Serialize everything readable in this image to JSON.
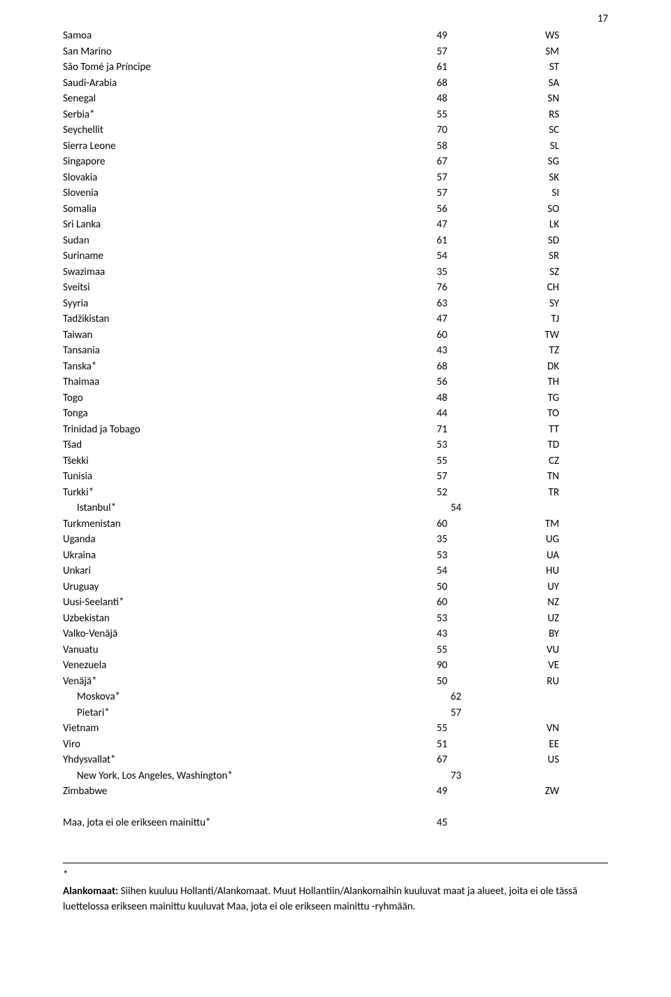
{
  "page_number": "17",
  "rows": [
    {
      "name": "Samoa",
      "num": "49",
      "code": "WS"
    },
    {
      "name": "San Marino",
      "num": "57",
      "code": "SM"
    },
    {
      "name": "São Tomé ja Príncipe",
      "num": "61",
      "code": "ST"
    },
    {
      "name": "Saudi-Arabia",
      "num": "68",
      "code": "SA"
    },
    {
      "name": "Senegal",
      "num": "48",
      "code": "SN"
    },
    {
      "name": "Serbia*",
      "num": "55",
      "code": "RS"
    },
    {
      "name": "Seychellit",
      "num": "70",
      "code": "SC"
    },
    {
      "name": "Sierra Leone",
      "num": "58",
      "code": "SL"
    },
    {
      "name": "Singapore",
      "num": "67",
      "code": "SG"
    },
    {
      "name": "Slovakia",
      "num": "57",
      "code": "SK"
    },
    {
      "name": "Slovenia",
      "num": "57",
      "code": "SI"
    },
    {
      "name": "Somalia",
      "num": "56",
      "code": "SO"
    },
    {
      "name": "Sri Lanka",
      "num": "47",
      "code": "LK"
    },
    {
      "name": "Sudan",
      "num": "61",
      "code": "SD"
    },
    {
      "name": "Suriname",
      "num": "54",
      "code": "SR"
    },
    {
      "name": "Swazimaa",
      "num": "35",
      "code": "SZ"
    },
    {
      "name": "Sveitsi",
      "num": "76",
      "code": "CH"
    },
    {
      "name": "Syyria",
      "num": "63",
      "code": "SY"
    },
    {
      "name": "Tadžikistan",
      "num": "47",
      "code": "TJ"
    },
    {
      "name": "Taiwan",
      "num": "60",
      "code": "TW"
    },
    {
      "name": "Tansania",
      "num": "43",
      "code": "TZ"
    },
    {
      "name": "Tanska*",
      "num": "68",
      "code": "DK"
    },
    {
      "name": "Thaimaa",
      "num": "56",
      "code": "TH"
    },
    {
      "name": "Togo",
      "num": "48",
      "code": "TG"
    },
    {
      "name": "Tonga",
      "num": "44",
      "code": "TO"
    },
    {
      "name": "Trinidad ja Tobago",
      "num": "71",
      "code": "TT"
    },
    {
      "name": "Tšad",
      "num": "53",
      "code": "TD"
    },
    {
      "name": "Tšekki",
      "num": "55",
      "code": "CZ"
    },
    {
      "name": "Tunisia",
      "num": "57",
      "code": "TN"
    },
    {
      "name": "Turkki*",
      "num": "52",
      "code": "TR"
    },
    {
      "name": "Istanbul*",
      "num": "54",
      "code": "",
      "indent": true
    },
    {
      "name": "Turkmenistan",
      "num": "60",
      "code": "TM"
    },
    {
      "name": "Uganda",
      "num": "35",
      "code": "UG"
    },
    {
      "name": "Ukraina",
      "num": "53",
      "code": "UA"
    },
    {
      "name": "Unkari",
      "num": "54",
      "code": "HU"
    },
    {
      "name": "Uruguay",
      "num": "50",
      "code": "UY"
    },
    {
      "name": "Uusi-Seelanti*",
      "num": "60",
      "code": "NZ"
    },
    {
      "name": "Uzbekistan",
      "num": "53",
      "code": "UZ"
    },
    {
      "name": "Valko-Venäjä",
      "num": "43",
      "code": "BY"
    },
    {
      "name": "Vanuatu",
      "num": "55",
      "code": "VU"
    },
    {
      "name": "Venezuela",
      "num": "90",
      "code": "VE"
    },
    {
      "name": "Venäjä*",
      "num": "50",
      "code": "RU"
    },
    {
      "name": "Moskova*",
      "num": "62",
      "code": "",
      "indent": true
    },
    {
      "name": "Pietari*",
      "num": "57",
      "code": "",
      "indent": true
    },
    {
      "name": "Vietnam",
      "num": "55",
      "code": "VN"
    },
    {
      "name": "Viro",
      "num": "51",
      "code": "EE"
    },
    {
      "name": "Yhdysvallat*",
      "num": "67",
      "code": "US"
    },
    {
      "name": "New York, Los Angeles, Washington*",
      "num": "73",
      "code": "",
      "indent": true
    },
    {
      "name": "Zimbabwe",
      "num": "49",
      "code": "ZW"
    }
  ],
  "summary_row": {
    "name": "Maa, jota ei ole erikseen mainittu*",
    "num": "45",
    "code": ""
  },
  "footnote": {
    "asterisk": "*",
    "bold_label": "Alankomaat:",
    "text1": " Siihen kuuluu Hollanti/Alankomaat. Muut Hollantiin/Alankomaihin kuuluvat maat ja alueet, joita ei ole tässä luettelossa erikseen mainittu kuuluvat Maa, jota ei ole erikseen mainittu -ryhmään."
  }
}
